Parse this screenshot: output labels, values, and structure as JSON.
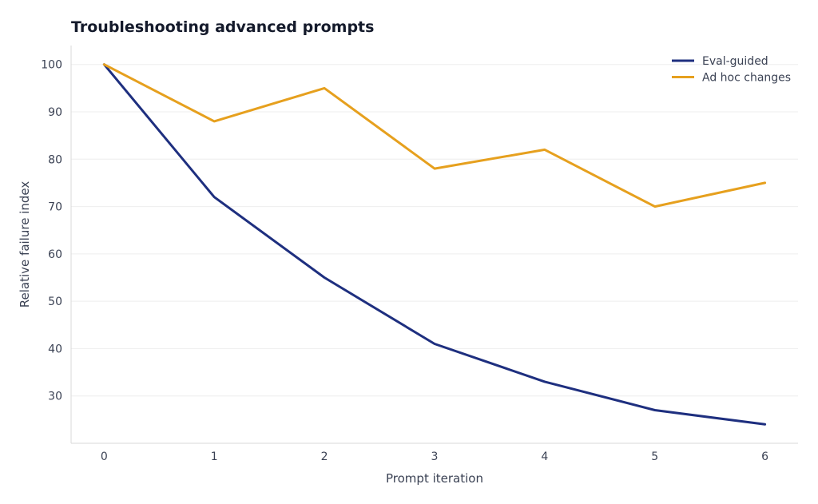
{
  "chart_data": {
    "type": "line",
    "title": "Troubleshooting advanced prompts",
    "xlabel": "Prompt iteration",
    "ylabel": "Relative failure index",
    "x": [
      0,
      1,
      2,
      3,
      4,
      5,
      6
    ],
    "x_ticks": [
      "0",
      "1",
      "2",
      "3",
      "4",
      "5",
      "6"
    ],
    "y_ticks": [
      "30",
      "40",
      "50",
      "60",
      "70",
      "80",
      "90",
      "100"
    ],
    "xlim": [
      -0.3,
      6.3
    ],
    "ylim": [
      20,
      104
    ],
    "grid": "horizontal",
    "legend": "top-right",
    "series": [
      {
        "name": "Eval-guided",
        "values": [
          100,
          72,
          55,
          41,
          33,
          27,
          24
        ],
        "color": "#1e2f7f"
      },
      {
        "name": "Ad hoc changes",
        "values": [
          100,
          88,
          95,
          78,
          82,
          70,
          75
        ],
        "color": "#e6a01e"
      }
    ],
    "colors": {
      "grid": "#eeeeee",
      "axis": "#d9d9d9",
      "text": "#3b4254",
      "title": "#141a2b"
    }
  }
}
